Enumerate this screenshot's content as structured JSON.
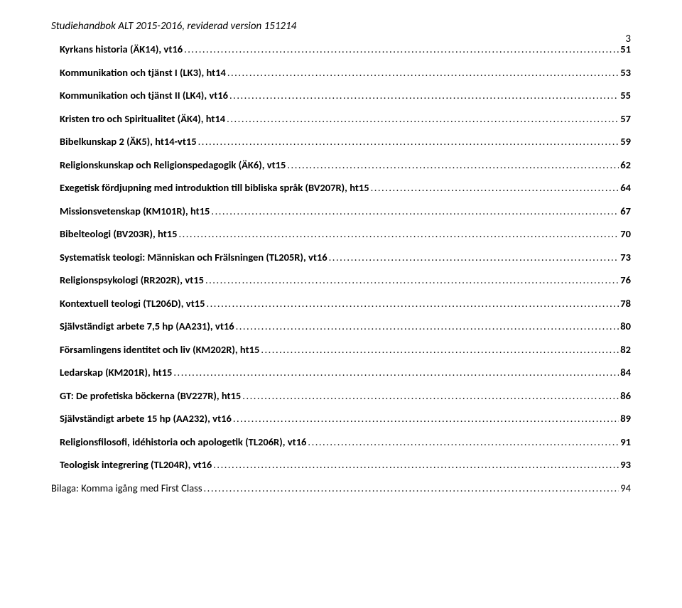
{
  "header": {
    "title": "Studiehandbok ALT 2015-2016, reviderad version 151214",
    "page_number": "3"
  },
  "toc": {
    "text_color": "#000000",
    "background_color": "#ffffff",
    "font_size": 14.5,
    "font_bold": true,
    "leader_char": ".",
    "items": [
      {
        "title": "Kyrkans historia (ÄK14), vt16",
        "page": "51",
        "indent": 0
      },
      {
        "title": "Kommunikation och tjänst I (LK3), ht14",
        "page": "53",
        "indent": 0
      },
      {
        "title": "Kommunikation och tjänst II (LK4), vt16",
        "page": "55",
        "indent": 0
      },
      {
        "title": "Kristen tro och Spiritualitet (ÄK4), ht14",
        "page": "57",
        "indent": 0
      },
      {
        "title": "Bibelkunskap 2 (ÄK5), ht14-vt15",
        "page": "59",
        "indent": 0
      },
      {
        "title": "Religionskunskap och Religionspedagogik (ÄK6), vt15",
        "page": "62",
        "indent": 0
      },
      {
        "title": "Exegetisk fördjupning med introduktion till bibliska språk (BV207R), ht15",
        "page": "64",
        "indent": 0
      },
      {
        "title": "Missionsvetenskap (KM101R), ht15",
        "page": "67",
        "indent": 0
      },
      {
        "title": "Bibelteologi (BV203R), ht15",
        "page": "70",
        "indent": 0
      },
      {
        "title": "Systematisk teologi: Människan och Frälsningen (TL205R), vt16",
        "page": "73",
        "indent": 0
      },
      {
        "title": "Religionspsykologi (RR202R), vt15",
        "page": "76",
        "indent": 0
      },
      {
        "title": "Kontextuell teologi (TL206D), vt15",
        "page": "78",
        "indent": 0
      },
      {
        "title": "Självständigt arbete 7,5 hp (AA231), vt16",
        "page": "80",
        "indent": 0
      },
      {
        "title": "Församlingens identitet och liv (KM202R), ht15",
        "page": "82",
        "indent": 0
      },
      {
        "title": "Ledarskap (KM201R), ht15",
        "page": "84",
        "indent": 0
      },
      {
        "title": "GT: De profetiska böckerna (BV227R), ht15",
        "page": "86",
        "indent": 0
      },
      {
        "title": "Självständigt arbete 15 hp (AA232), vt16",
        "page": "89",
        "indent": 0
      },
      {
        "title": "Religionsfilosofi, idéhistoria och apologetik (TL206R), vt16",
        "page": "91",
        "indent": 0
      },
      {
        "title": "Teologisk integrering (TL204R), vt16",
        "page": "93",
        "indent": 0
      },
      {
        "title": "Bilaga: Komma igång med First Class",
        "page": "94",
        "indent": -1
      }
    ]
  }
}
